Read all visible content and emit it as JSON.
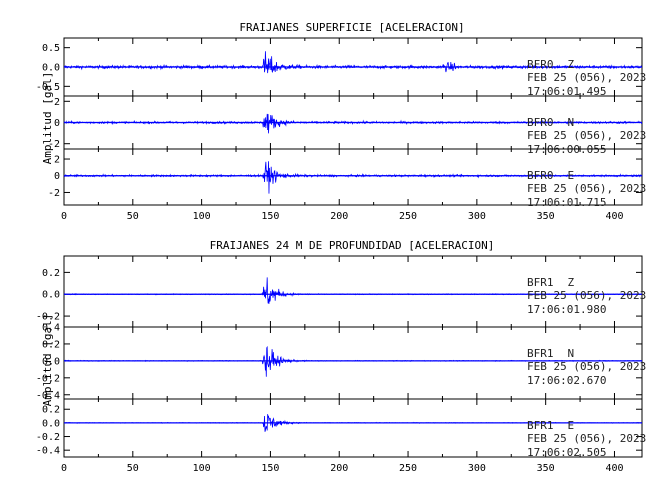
{
  "colors": {
    "trace": "#0000ff",
    "axis": "#000000",
    "background": "#ffffff"
  },
  "chart_data": [
    {
      "type": "line",
      "title": "FRAIJANES SUPERFICIE [ACELERACION]",
      "ylabel": "Amplitud [gal]",
      "xlim": [
        0,
        420
      ],
      "xticks": [
        0,
        50,
        100,
        150,
        200,
        250,
        300,
        350,
        400
      ],
      "event_time_s": 147,
      "panels": [
        {
          "station": "BFR0",
          "component": "Z",
          "date_line": "FEB 25 (056), 2023",
          "time_line": "17:06:01.495",
          "ylim": [
            -0.75,
            0.75
          ],
          "yticks": [
            0.5,
            0.0,
            -0.5
          ],
          "ytick_labels": [
            "0.5",
            "0.0",
            "-0.5"
          ],
          "peak": 0.7,
          "noise": 0.04
        },
        {
          "station": "BFR0",
          "component": "N",
          "date_line": "FEB 25 (056), 2023",
          "time_line": "17:06:00.055",
          "ylim": [
            -2.5,
            2.5
          ],
          "yticks": [
            2,
            0,
            -2
          ],
          "ytick_labels": [
            "2",
            "0",
            "-2"
          ],
          "peak": 2.2,
          "noise": 0.1
        },
        {
          "station": "BFR0",
          "component": "E",
          "date_line": "FEB 25 (056), 2023",
          "time_line": "17:06:01.715",
          "ylim": [
            -3.5,
            3.2
          ],
          "yticks": [
            2,
            0,
            -2
          ],
          "ytick_labels": [
            "2",
            "0",
            "-2"
          ],
          "peak": 3.2,
          "noise": 0.12
        }
      ]
    },
    {
      "type": "line",
      "title": "FRAIJANES 24 M DE PROFUNDIDAD [ACELERACION]",
      "ylabel": "Amplitud [gal]",
      "xlim": [
        0,
        420
      ],
      "xticks": [
        0,
        50,
        100,
        150,
        200,
        250,
        300,
        350,
        400
      ],
      "event_time_s": 147,
      "panels": [
        {
          "station": "BFR1",
          "component": "Z",
          "date_line": "FEB 25 (056), 2023",
          "time_line": "17:06:01.980",
          "ylim": [
            -0.3,
            0.35
          ],
          "yticks": [
            0.2,
            0.0,
            -0.2
          ],
          "ytick_labels": [
            "0.2",
            "0.0",
            "-0.2"
          ],
          "peak": 0.3,
          "noise": 0.004
        },
        {
          "station": "BFR1",
          "component": "N",
          "date_line": "FEB 25 (056), 2023",
          "time_line": "17:06:02.670",
          "ylim": [
            -0.45,
            0.4
          ],
          "yticks": [
            0.4,
            0.2,
            0.0,
            -0.2,
            -0.4
          ],
          "ytick_labels": [
            "0.4",
            "0.2",
            "0.0",
            "-0.2",
            "-0.4"
          ],
          "peak": 0.4,
          "noise": 0.005
        },
        {
          "station": "BFR1",
          "component": "E",
          "date_line": "FEB 25 (056), 2023",
          "time_line": "17:06:02.505",
          "ylim": [
            -0.5,
            0.35
          ],
          "yticks": [
            0.2,
            0.0,
            -0.2,
            -0.4
          ],
          "ytick_labels": [
            "0.2",
            "0.0",
            "-0.2",
            "-0.4"
          ],
          "peak": 0.35,
          "noise": 0.005
        }
      ]
    }
  ]
}
